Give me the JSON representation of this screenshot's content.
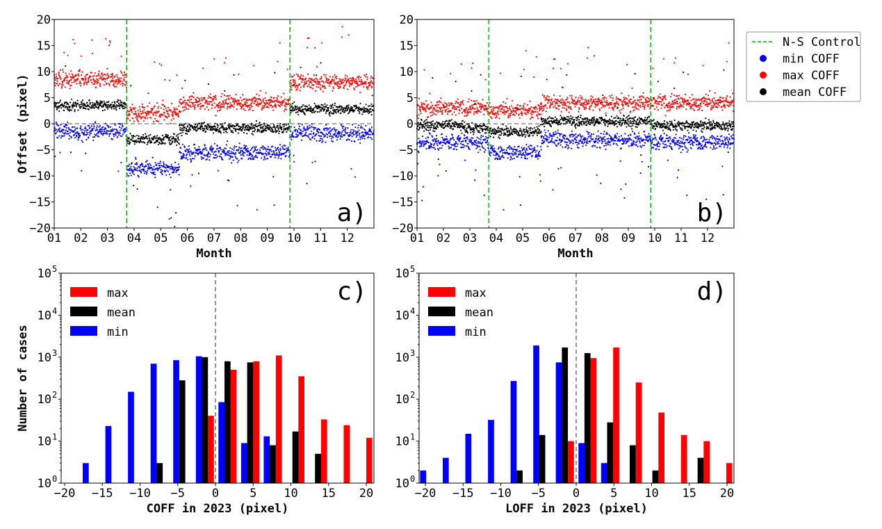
{
  "chart_data": [
    {
      "panel": "a)",
      "type": "scatter",
      "xlabel": "Month",
      "ylabel": "Offset (pixel)",
      "xticks": [
        "01",
        "02",
        "03",
        "04",
        "05",
        "06",
        "07",
        "08",
        "09",
        "10",
        "11",
        "12"
      ],
      "yticks": [
        "20",
        "15",
        "10",
        "5",
        "0",
        "−5",
        "−10",
        "−15",
        "−20"
      ],
      "ylim": [
        -20,
        20
      ],
      "xlim_month": [
        1,
        13
      ],
      "ns_control_month": [
        3.72,
        9.85
      ],
      "segment_levels": [
        {
          "months": [
            1,
            3.72
          ],
          "max": 8.5,
          "mean": 3.5,
          "min": -1.5
        },
        {
          "months": [
            3.72,
            5.7
          ],
          "max": 2.0,
          "mean": -3.0,
          "min": -8.5
        },
        {
          "months": [
            5.7,
            9.85
          ],
          "max": 4.0,
          "mean": -0.8,
          "min": -5.5
        },
        {
          "months": [
            9.85,
            13
          ],
          "max": 8.0,
          "mean": 2.8,
          "min": -1.8
        }
      ]
    },
    {
      "panel": "b)",
      "type": "scatter",
      "xlabel": "Month",
      "xticks": [
        "01",
        "02",
        "03",
        "04",
        "05",
        "06",
        "07",
        "08",
        "09",
        "10",
        "11",
        "12"
      ],
      "yticks": [
        "20",
        "15",
        "10",
        "5",
        "0",
        "−5",
        "−10",
        "−15",
        "−20"
      ],
      "ylim": [
        -20,
        20
      ],
      "xlim_month": [
        1,
        13
      ],
      "ns_control_month": [
        3.72,
        9.85
      ],
      "segment_levels": [
        {
          "months": [
            1,
            2.8
          ],
          "max": 3.0,
          "mean": -0.3,
          "min": -3.5
        },
        {
          "months": [
            2.8,
            3.72
          ],
          "max": 3.0,
          "mean": -0.8,
          "min": -3.5
        },
        {
          "months": [
            3.72,
            5.7
          ],
          "max": 2.5,
          "mean": -1.5,
          "min": -5.5
        },
        {
          "months": [
            5.7,
            9.85
          ],
          "max": 4.0,
          "mean": 0.5,
          "min": -3.0
        },
        {
          "months": [
            9.85,
            13
          ],
          "max": 4.0,
          "mean": -0.3,
          "min": -3.5
        }
      ]
    },
    {
      "panel": "c)",
      "type": "bar",
      "xlabel": "COFF in 2023 (pixel)",
      "ylabel": "Number of cases",
      "yscale": "log",
      "ylim": [
        1,
        100000
      ],
      "xlim": [
        -21,
        21
      ],
      "xticks": [
        "−20",
        "−15",
        "−10",
        "−5",
        "0",
        "5",
        "10",
        "15",
        "20"
      ],
      "group_centers": [
        -16.4,
        -13.4,
        -10.4,
        -7.4,
        -4.4,
        -1.4,
        1.6,
        4.6,
        7.6,
        10.6,
        13.6,
        16.6,
        19.6
      ],
      "series": [
        {
          "name": "max",
          "values": [
            0,
            0,
            0,
            0,
            0,
            40,
            500,
            800,
            1100,
            350,
            33,
            24,
            12
          ]
        },
        {
          "name": "mean",
          "values": [
            0,
            0,
            0,
            3,
            280,
            1000,
            800,
            750,
            8,
            17,
            5,
            0,
            0
          ]
        },
        {
          "name": "min",
          "values": [
            3,
            23,
            150,
            700,
            850,
            1050,
            85,
            9,
            13,
            0,
            0,
            0,
            0
          ]
        }
      ]
    },
    {
      "panel": "d)",
      "type": "bar",
      "xlabel": "LOFF in 2023 (pixel)",
      "yscale": "log",
      "ylim": [
        1,
        100000
      ],
      "xlim": [
        -21,
        21
      ],
      "xticks": [
        "−20",
        "−15",
        "−10",
        "−5",
        "0",
        "5",
        "10",
        "15",
        "20"
      ],
      "group_centers": [
        -19.5,
        -16.5,
        -13.5,
        -10.5,
        -7.5,
        -4.5,
        -1.5,
        1.5,
        4.5,
        7.5,
        10.5,
        13.5,
        16.5,
        19.5
      ],
      "series": [
        {
          "name": "max",
          "values": [
            0,
            0,
            0,
            0,
            0,
            0,
            10,
            950,
            1700,
            250,
            48,
            14,
            10,
            3
          ]
        },
        {
          "name": "mean",
          "values": [
            0,
            0,
            0,
            0,
            2,
            14,
            1700,
            1250,
            28,
            8,
            2,
            0,
            4,
            0
          ]
        },
        {
          "name": "min",
          "values": [
            2,
            4,
            15,
            32,
            270,
            1900,
            750,
            9,
            3,
            0,
            0,
            0,
            0,
            0
          ]
        }
      ]
    }
  ],
  "legend_top": [
    {
      "label": "N-S Control",
      "color": "#22bb22",
      "marker": "dashed-line"
    },
    {
      "label": "min COFF",
      "color": "#0000ff",
      "marker": "dot"
    },
    {
      "label": "max COFF",
      "color": "#ff0000",
      "marker": "dot"
    },
    {
      "label": "mean COFF",
      "color": "#000000",
      "marker": "dot"
    }
  ],
  "ylabel_hist_ticks": [
    "10",
    "10",
    "10",
    "10",
    "10",
    "10"
  ],
  "ylabel_hist_exp": [
    "0",
    "1",
    "2",
    "3",
    "4",
    "5"
  ],
  "colors": {
    "max": "#ff0000",
    "mean": "#000000",
    "min": "#0000ff",
    "ns": "#22bb22",
    "zero": "#888888"
  }
}
